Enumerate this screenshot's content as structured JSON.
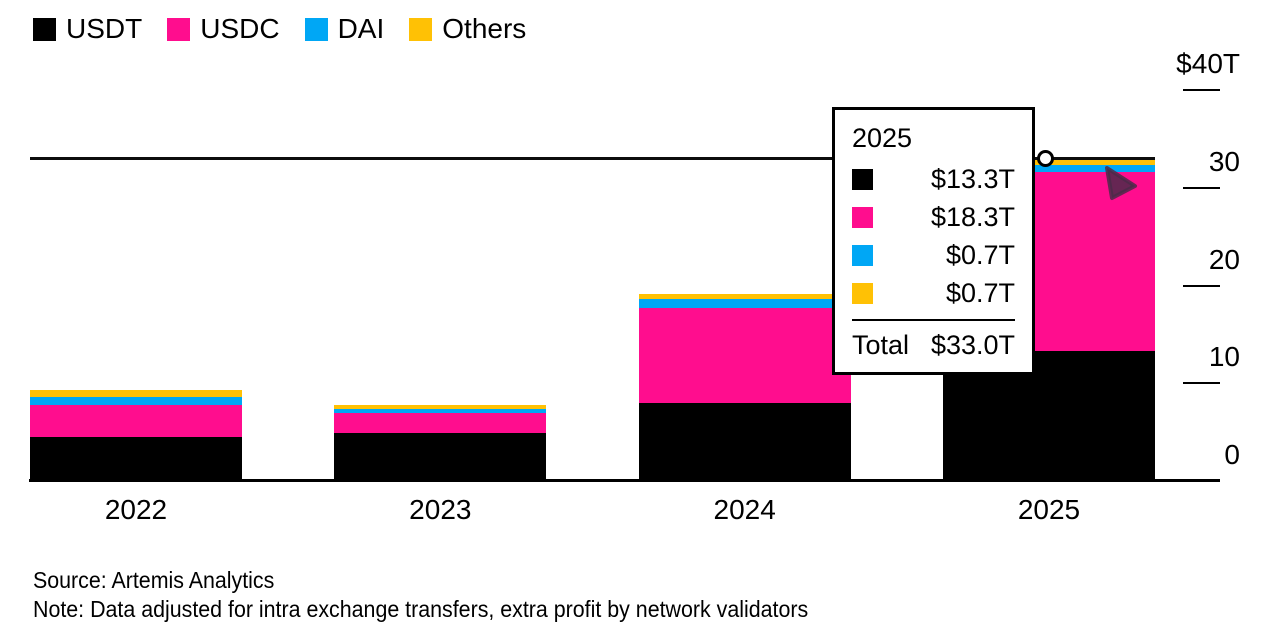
{
  "colors": {
    "usdt": "#000000",
    "usdc": "#ff0d8e",
    "dai": "#00a7f5",
    "others": "#ffc105",
    "axis": "#000000",
    "cursor": "#4b2b49"
  },
  "legend": {
    "items": [
      {
        "label": "USDT",
        "color": "#000000"
      },
      {
        "label": "USDC",
        "color": "#ff0d8e"
      },
      {
        "label": "DAI",
        "color": "#00a7f5"
      },
      {
        "label": "Others",
        "color": "#ffc105"
      }
    ]
  },
  "chart_data": {
    "type": "bar",
    "stacked": true,
    "categories": [
      "2022",
      "2023",
      "2024",
      "2025"
    ],
    "series": [
      {
        "name": "USDT",
        "color": "#000000",
        "values": [
          4.5,
          4.9,
          8.0,
          13.3
        ]
      },
      {
        "name": "USDC",
        "color": "#ff0d8e",
        "values": [
          3.3,
          2.1,
          9.7,
          18.3
        ]
      },
      {
        "name": "DAI",
        "color": "#00a7f5",
        "values": [
          0.8,
          0.4,
          0.9,
          0.7
        ]
      },
      {
        "name": "Others",
        "color": "#ffc105",
        "values": [
          0.7,
          0.4,
          0.5,
          0.7
        ]
      }
    ],
    "totals": [
      9.3,
      7.8,
      19.1,
      33.0
    ],
    "title": "",
    "xlabel": "",
    "ylabel": "",
    "ylim": [
      0,
      40
    ],
    "unit": "T",
    "grid": false,
    "legend_position": "top-left",
    "axis_side": "right",
    "highlight": {
      "category": "2025",
      "line_value": 33.0
    }
  },
  "y_axis": {
    "ticks": [
      {
        "label": "$40T",
        "value": 40,
        "dash": true
      },
      {
        "label": "30",
        "value": 30,
        "dash": true
      },
      {
        "label": "20",
        "value": 20,
        "dash": true
      },
      {
        "label": "10",
        "value": 10,
        "dash": true
      },
      {
        "label": "0",
        "value": 0,
        "dash": false
      }
    ]
  },
  "x_axis": {
    "labels": [
      "2022",
      "2023",
      "2024",
      "2025"
    ]
  },
  "tooltip": {
    "title": "2025",
    "rows": [
      {
        "series": "USDT",
        "color": "#000000",
        "value": "$13.3T"
      },
      {
        "series": "USDC",
        "color": "#ff0d8e",
        "value": "$18.3T"
      },
      {
        "series": "DAI",
        "color": "#00a7f5",
        "value": "$0.7T"
      },
      {
        "series": "Others",
        "color": "#ffc105",
        "value": "$0.7T"
      }
    ],
    "total_label": "Total",
    "total_value": "$33.0T"
  },
  "footer": {
    "source": "Source: Artemis Analytics",
    "note": "Note: Data adjusted for intra exchange transfers, extra profit by network validators"
  }
}
